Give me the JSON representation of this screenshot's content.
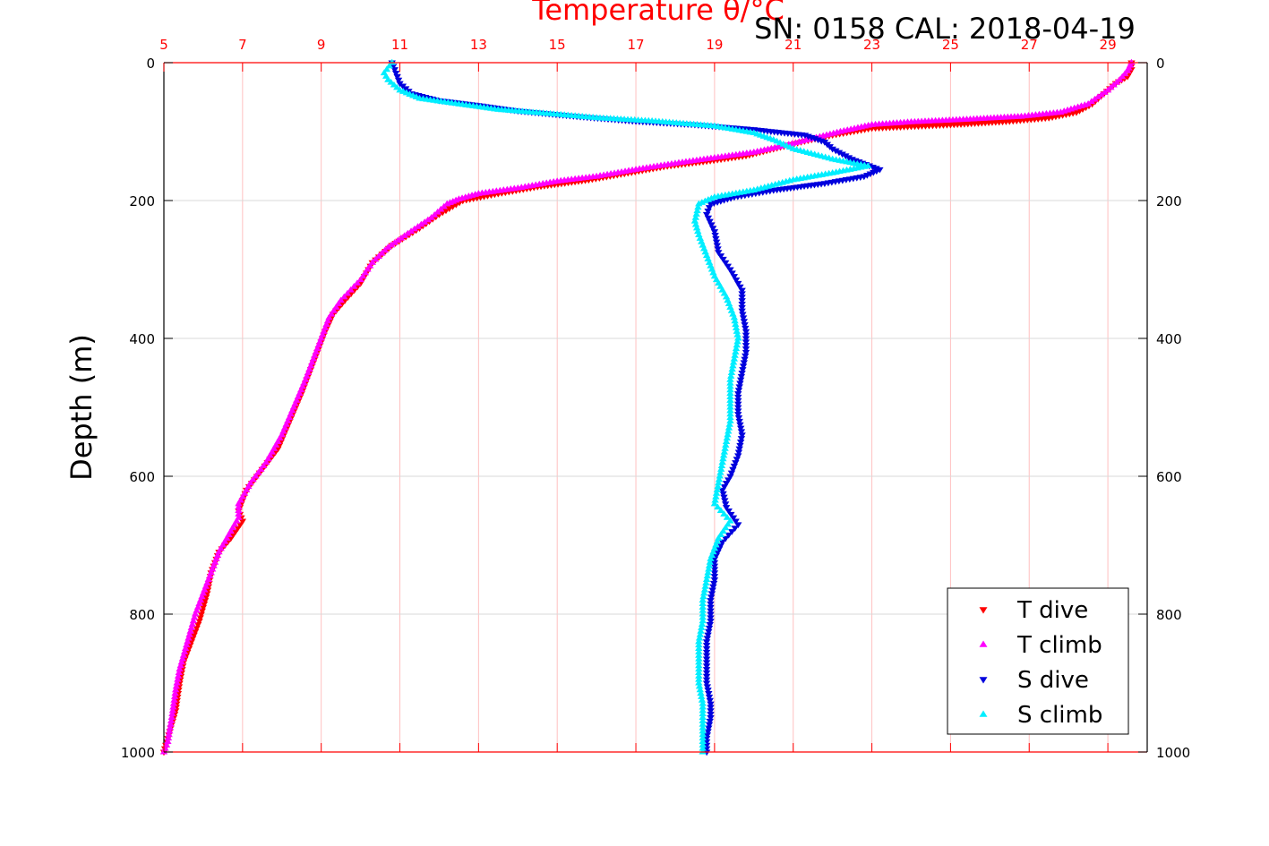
{
  "chart_data": {
    "type": "scatter",
    "title": "Temperature θ/°C",
    "subtitle": "SN: 0158  CAL: 2018-04-19",
    "xlabel": "Temperature θ/°C",
    "ylabel": "Depth (m)",
    "xlim": [
      5,
      30
    ],
    "ylim": [
      1000,
      0
    ],
    "x_axis_position": "top",
    "y_axis_inverted": true,
    "x_ticks": [
      5,
      7,
      9,
      11,
      13,
      15,
      17,
      19,
      21,
      23,
      25,
      27,
      29
    ],
    "x_tick_labels": [
      "5",
      "7",
      "9",
      "11",
      "13",
      "15",
      "17",
      "19",
      "21",
      "23",
      "25",
      "27",
      "29"
    ],
    "y_ticks": [
      0,
      200,
      400,
      600,
      800,
      1000
    ],
    "y_tick_labels": [
      "0",
      "200",
      "400",
      "600",
      "800",
      "1000"
    ],
    "grid": true,
    "legend_position": "bottom-right",
    "colors": {
      "x_axis": "#ff0000",
      "grid_x": "#ffc0c0",
      "grid_y": "#d9d9d9",
      "frame": "#000000"
    },
    "series": [
      {
        "name": "T dive",
        "marker": "triangle-down",
        "color": "#ff0000",
        "points": [
          [
            29.6,
            0
          ],
          [
            29.6,
            10
          ],
          [
            29.5,
            20
          ],
          [
            29.2,
            30
          ],
          [
            28.9,
            45
          ],
          [
            28.6,
            60
          ],
          [
            28.2,
            72
          ],
          [
            27.5,
            80
          ],
          [
            26.5,
            85
          ],
          [
            25.0,
            90
          ],
          [
            23.0,
            95
          ],
          [
            22.0,
            105
          ],
          [
            21.2,
            115
          ],
          [
            20.5,
            125
          ],
          [
            19.8,
            135
          ],
          [
            18.8,
            143
          ],
          [
            17.8,
            150
          ],
          [
            16.8,
            160
          ],
          [
            15.8,
            170
          ],
          [
            14.5,
            180
          ],
          [
            13.5,
            190
          ],
          [
            12.6,
            200
          ],
          [
            12.0,
            220
          ],
          [
            11.5,
            240
          ],
          [
            10.8,
            265
          ],
          [
            10.3,
            290
          ],
          [
            10.0,
            320
          ],
          [
            9.6,
            345
          ],
          [
            9.3,
            365
          ],
          [
            9.1,
            390
          ],
          [
            8.9,
            420
          ],
          [
            8.7,
            450
          ],
          [
            8.5,
            480
          ],
          [
            8.2,
            520
          ],
          [
            7.9,
            560
          ],
          [
            7.5,
            590
          ],
          [
            7.1,
            620
          ],
          [
            6.9,
            650
          ],
          [
            7.0,
            665
          ],
          [
            6.7,
            690
          ],
          [
            6.4,
            710
          ],
          [
            6.2,
            740
          ],
          [
            6.1,
            770
          ],
          [
            5.9,
            810
          ],
          [
            5.7,
            840
          ],
          [
            5.5,
            870
          ],
          [
            5.4,
            900
          ],
          [
            5.3,
            940
          ],
          [
            5.1,
            980
          ],
          [
            5.0,
            1000
          ]
        ]
      },
      {
        "name": "T climb",
        "marker": "triangle-up",
        "color": "#ff00ff",
        "points": [
          [
            29.6,
            0
          ],
          [
            29.5,
            12
          ],
          [
            29.3,
            25
          ],
          [
            29.0,
            40
          ],
          [
            28.5,
            60
          ],
          [
            27.8,
            72
          ],
          [
            26.8,
            78
          ],
          [
            25.5,
            82
          ],
          [
            24.0,
            86
          ],
          [
            23.0,
            90
          ],
          [
            22.2,
            100
          ],
          [
            21.5,
            110
          ],
          [
            20.8,
            120
          ],
          [
            20.0,
            130
          ],
          [
            19.0,
            138
          ],
          [
            18.0,
            146
          ],
          [
            17.0,
            155
          ],
          [
            16.0,
            165
          ],
          [
            15.0,
            172
          ],
          [
            14.0,
            182
          ],
          [
            13.0,
            190
          ],
          [
            12.5,
            198
          ],
          [
            12.2,
            205
          ],
          [
            11.8,
            225
          ],
          [
            11.2,
            248
          ],
          [
            10.7,
            268
          ],
          [
            10.3,
            290
          ],
          [
            10.0,
            315
          ],
          [
            9.5,
            345
          ],
          [
            9.2,
            370
          ],
          [
            9.0,
            400
          ],
          [
            8.8,
            430
          ],
          [
            8.6,
            460
          ],
          [
            8.3,
            500
          ],
          [
            8.0,
            540
          ],
          [
            7.6,
            580
          ],
          [
            7.2,
            610
          ],
          [
            6.9,
            640
          ],
          [
            6.9,
            660
          ],
          [
            6.6,
            690
          ],
          [
            6.4,
            710
          ],
          [
            6.2,
            740
          ],
          [
            6.0,
            770
          ],
          [
            5.8,
            800
          ],
          [
            5.6,
            840
          ],
          [
            5.4,
            880
          ],
          [
            5.3,
            910
          ],
          [
            5.2,
            950
          ],
          [
            5.1,
            985
          ],
          [
            5.0,
            1000
          ]
        ]
      },
      {
        "name": "S dive",
        "marker": "triangle-down",
        "color": "#0000dd",
        "points": [
          [
            10.8,
            0
          ],
          [
            10.9,
            15
          ],
          [
            11.0,
            30
          ],
          [
            11.3,
            45
          ],
          [
            12.0,
            55
          ],
          [
            13.0,
            62
          ],
          [
            14.0,
            70
          ],
          [
            15.5,
            78
          ],
          [
            17.0,
            85
          ],
          [
            18.5,
            90
          ],
          [
            20.0,
            97
          ],
          [
            21.3,
            105
          ],
          [
            21.8,
            115
          ],
          [
            22.0,
            125
          ],
          [
            22.5,
            140
          ],
          [
            23.2,
            155
          ],
          [
            22.8,
            165
          ],
          [
            21.8,
            175
          ],
          [
            20.5,
            185
          ],
          [
            19.5,
            195
          ],
          [
            18.9,
            205
          ],
          [
            18.8,
            220
          ],
          [
            19.0,
            245
          ],
          [
            19.1,
            275
          ],
          [
            19.4,
            300
          ],
          [
            19.7,
            330
          ],
          [
            19.7,
            360
          ],
          [
            19.8,
            390
          ],
          [
            19.8,
            420
          ],
          [
            19.7,
            450
          ],
          [
            19.6,
            480
          ],
          [
            19.6,
            510
          ],
          [
            19.7,
            540
          ],
          [
            19.6,
            570
          ],
          [
            19.4,
            600
          ],
          [
            19.2,
            620
          ],
          [
            19.3,
            645
          ],
          [
            19.6,
            670
          ],
          [
            19.2,
            695
          ],
          [
            19.0,
            720
          ],
          [
            19.0,
            750
          ],
          [
            18.9,
            780
          ],
          [
            18.9,
            810
          ],
          [
            18.8,
            840
          ],
          [
            18.8,
            870
          ],
          [
            18.8,
            900
          ],
          [
            18.9,
            930
          ],
          [
            18.9,
            950
          ],
          [
            18.8,
            980
          ],
          [
            18.8,
            1000
          ]
        ]
      },
      {
        "name": "S climb",
        "marker": "triangle-up",
        "color": "#00eeff",
        "points": [
          [
            10.8,
            0
          ],
          [
            10.6,
            15
          ],
          [
            10.7,
            25
          ],
          [
            11.0,
            40
          ],
          [
            11.5,
            52
          ],
          [
            12.5,
            60
          ],
          [
            13.5,
            68
          ],
          [
            15.0,
            75
          ],
          [
            16.0,
            80
          ],
          [
            17.5,
            85
          ],
          [
            19.0,
            92
          ],
          [
            20.0,
            102
          ],
          [
            20.5,
            112
          ],
          [
            21.0,
            125
          ],
          [
            22.0,
            140
          ],
          [
            22.9,
            150
          ],
          [
            22.0,
            160
          ],
          [
            21.0,
            170
          ],
          [
            20.0,
            185
          ],
          [
            19.0,
            195
          ],
          [
            18.6,
            205
          ],
          [
            18.5,
            230
          ],
          [
            18.6,
            250
          ],
          [
            18.8,
            280
          ],
          [
            19.0,
            310
          ],
          [
            19.3,
            340
          ],
          [
            19.5,
            370
          ],
          [
            19.6,
            400
          ],
          [
            19.5,
            430
          ],
          [
            19.4,
            460
          ],
          [
            19.4,
            490
          ],
          [
            19.4,
            520
          ],
          [
            19.3,
            550
          ],
          [
            19.2,
            580
          ],
          [
            19.1,
            610
          ],
          [
            19.0,
            640
          ],
          [
            19.4,
            665
          ],
          [
            19.1,
            690
          ],
          [
            18.9,
            720
          ],
          [
            18.8,
            750
          ],
          [
            18.7,
            780
          ],
          [
            18.7,
            810
          ],
          [
            18.6,
            840
          ],
          [
            18.6,
            870
          ],
          [
            18.6,
            900
          ],
          [
            18.7,
            930
          ],
          [
            18.7,
            960
          ],
          [
            18.7,
            985
          ],
          [
            18.7,
            1000
          ]
        ]
      }
    ]
  }
}
